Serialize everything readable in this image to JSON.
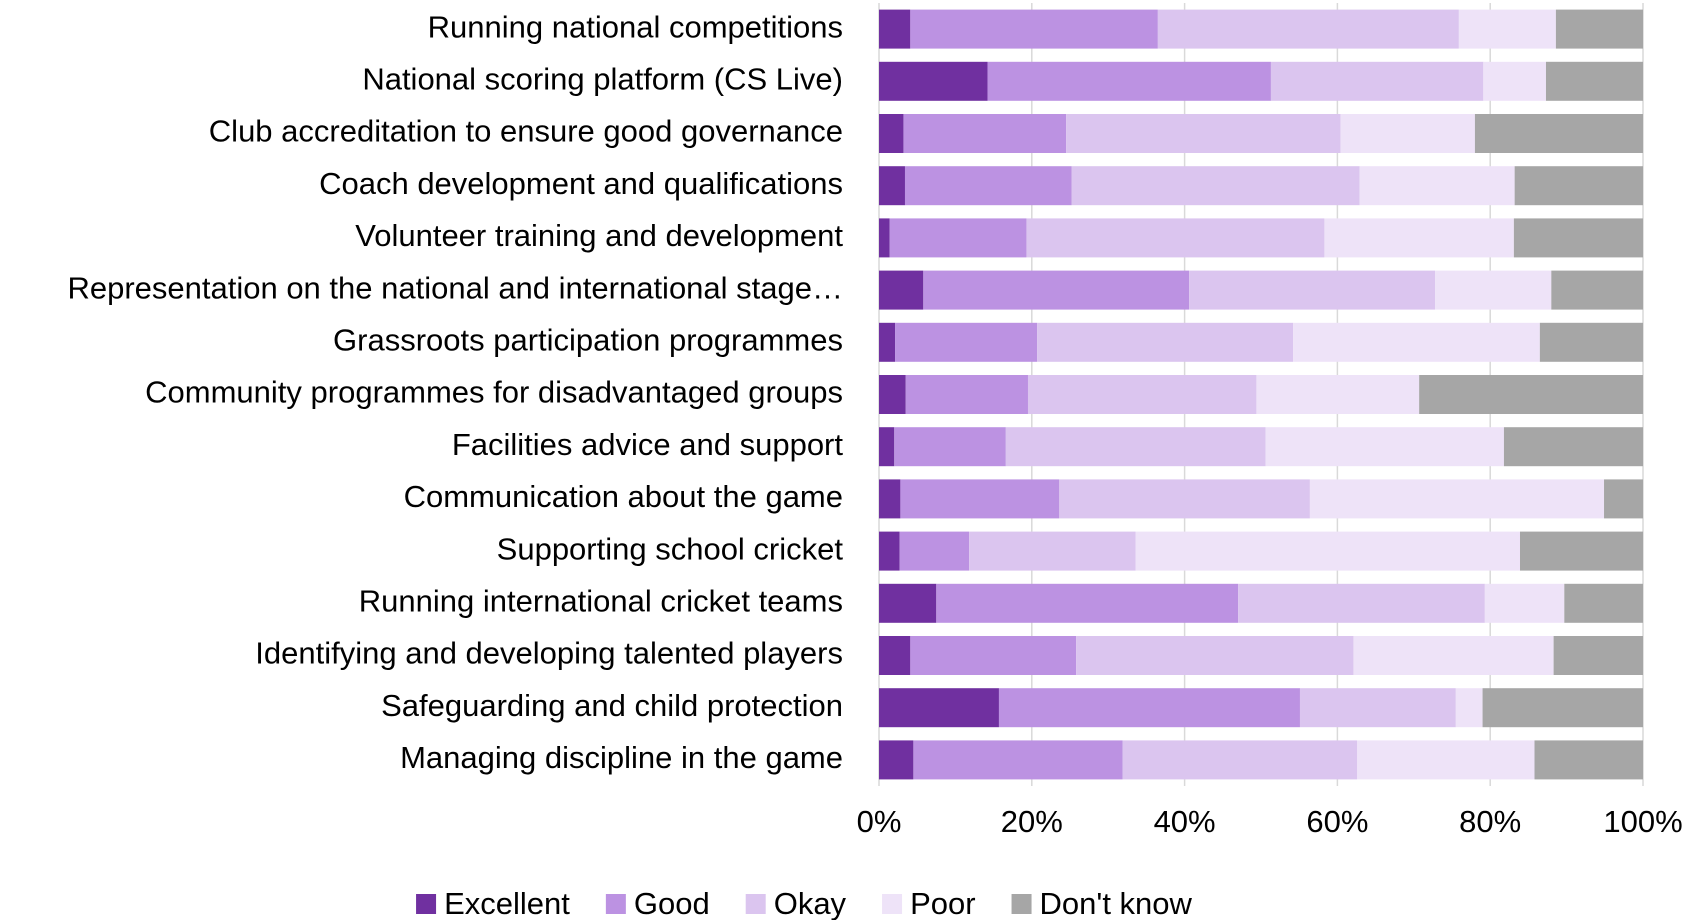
{
  "chart_data": {
    "type": "stacked_barh",
    "categories": [
      "Running national competitions",
      "National scoring platform (CS Live)",
      "Club accreditation to ensure good governance",
      "Coach development and qualifications",
      "Volunteer training and development",
      "Representation on the national and international stage…",
      "Grassroots participation programmes",
      "Community programmes for disadvantaged groups",
      "Facilities advice and support",
      "Communication about the game",
      "Supporting school cricket",
      "Running international cricket teams",
      "Identifying and developing talented players",
      "Safeguarding and child protection",
      "Managing discipline in the game"
    ],
    "series": [
      {
        "name": "Excellent",
        "color": "#7030a0",
        "values": [
          4.1,
          14.2,
          3.2,
          3.4,
          1.4,
          5.8,
          2.1,
          3.5,
          2.0,
          2.8,
          2.7,
          7.5,
          4.1,
          15.7,
          4.5
        ]
      },
      {
        "name": "Good",
        "color": "#bc92e2",
        "values": [
          32.4,
          37.1,
          21.3,
          21.8,
          17.9,
          34.8,
          18.6,
          16.0,
          14.6,
          20.8,
          9.1,
          39.5,
          21.7,
          39.4,
          27.4
        ]
      },
      {
        "name": "Okay",
        "color": "#dbc5ef",
        "values": [
          39.4,
          27.8,
          35.9,
          37.7,
          39.0,
          32.2,
          33.5,
          29.9,
          34.0,
          32.8,
          21.8,
          32.3,
          36.3,
          20.4,
          30.7
        ]
      },
      {
        "name": "Poor",
        "color": "#eee3f8",
        "values": [
          12.7,
          8.2,
          17.6,
          20.3,
          24.8,
          15.2,
          32.3,
          21.3,
          31.2,
          38.5,
          50.3,
          10.4,
          26.2,
          3.5,
          23.2
        ]
      },
      {
        "name": "Don't know",
        "color": "#a6a6a6",
        "values": [
          11.4,
          12.7,
          22.0,
          16.8,
          16.9,
          12.0,
          13.5,
          29.3,
          18.2,
          5.1,
          16.1,
          10.3,
          11.7,
          21.0,
          14.2
        ]
      }
    ],
    "xlim": [
      0,
      100
    ],
    "xticks": [
      {
        "value": 0,
        "label": "0%"
      },
      {
        "value": 20,
        "label": "20%"
      },
      {
        "value": 40,
        "label": "40%"
      },
      {
        "value": 60,
        "label": "60%"
      },
      {
        "value": 80,
        "label": "80%"
      },
      {
        "value": 100,
        "label": "100%"
      }
    ],
    "grid": true,
    "legend": "bottom"
  }
}
